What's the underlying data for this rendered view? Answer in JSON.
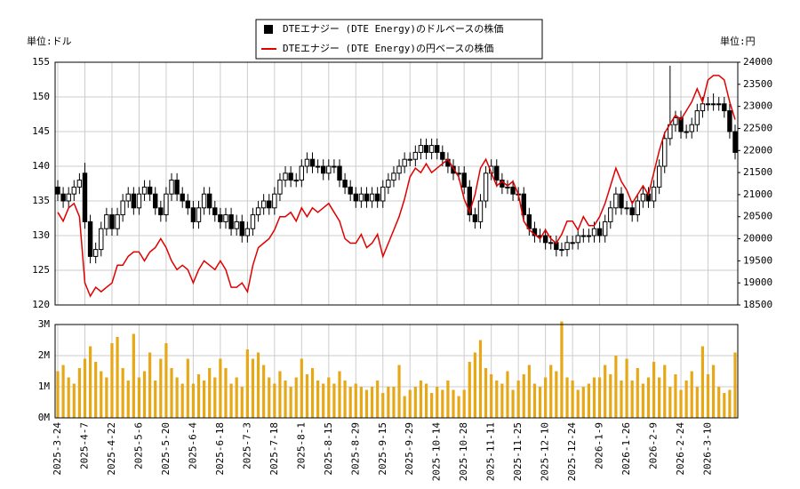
{
  "chart_data": [
    {
      "type": "candlestick",
      "y_label": "単位:ドル",
      "y2_label": "単位:円",
      "categories": [
        "2025-3-24",
        null,
        null,
        null,
        null,
        "2025-4-7",
        null,
        null,
        null,
        null,
        "2025-4-22",
        null,
        null,
        null,
        null,
        "2025-5-6",
        null,
        null,
        null,
        null,
        "2025-5-20",
        null,
        null,
        null,
        null,
        "2025-6-4",
        null,
        null,
        null,
        null,
        "2025-6-18",
        null,
        null,
        null,
        null,
        "2025-7-3",
        null,
        null,
        null,
        null,
        "2025-7-18",
        null,
        null,
        null,
        null,
        "2025-8-1",
        null,
        null,
        null,
        null,
        "2025-8-15",
        null,
        null,
        null,
        null,
        "2025-8-29",
        null,
        null,
        null,
        null,
        "2025-9-15",
        null,
        null,
        null,
        null,
        "2025-9-29",
        null,
        null,
        null,
        null,
        "2025-10-14",
        null,
        null,
        null,
        null,
        "2025-10-28",
        null,
        null,
        null,
        null,
        "2025-11-11",
        null,
        null,
        null,
        null,
        "2025-11-25",
        null,
        null,
        null,
        null,
        "2025-12-10",
        null,
        null,
        null,
        null,
        "2025-12-24",
        null,
        null,
        null,
        null,
        "2026-1-9",
        null,
        null,
        null,
        null,
        "2026-1-26",
        null,
        null,
        null,
        null,
        "2026-2-9",
        null,
        null,
        null,
        null,
        "2026-2-24",
        null,
        null,
        null,
        null,
        "2026-3-10",
        null,
        null,
        null,
        null,
        null
      ],
      "series": [
        {
          "name": "DTEエナジー (DTE Energy)のドルベースの株価",
          "color": "#000000",
          "open": [
            137,
            136,
            135,
            136,
            137,
            139,
            132,
            127,
            128,
            131,
            133,
            131,
            133,
            135,
            136,
            134,
            136,
            137,
            136,
            134,
            133,
            136,
            138,
            136,
            135,
            134,
            132,
            134,
            136,
            134,
            133,
            132,
            133,
            131,
            132,
            130,
            131,
            133,
            134,
            135,
            134,
            136,
            138,
            139,
            138,
            138,
            140,
            141,
            140,
            140,
            139,
            140,
            140,
            138,
            137,
            136,
            135,
            136,
            135,
            136,
            135,
            137,
            138,
            139,
            140,
            141,
            141,
            142,
            143,
            142,
            143,
            142,
            141,
            140,
            139,
            139,
            137,
            133,
            132,
            135,
            139,
            140,
            138,
            137,
            137,
            136,
            136,
            133,
            131,
            130,
            130,
            129,
            129,
            128,
            128,
            129,
            129,
            130,
            130,
            130,
            131,
            130,
            132,
            134,
            136,
            134,
            134,
            133,
            135,
            136,
            135,
            137,
            140,
            144,
            146,
            147,
            145,
            145,
            146,
            148,
            149,
            149,
            149,
            149,
            148,
            145
          ],
          "high": [
            138,
            137,
            137,
            138,
            139,
            140.5,
            133,
            129,
            132,
            134,
            134,
            134,
            136,
            137,
            137,
            137,
            138,
            138,
            137,
            135,
            137,
            139,
            139,
            137,
            136,
            135,
            135,
            137,
            137,
            135,
            134,
            134,
            134,
            133,
            133,
            132,
            134,
            135,
            136,
            136,
            137,
            139,
            140,
            140,
            139,
            141,
            142,
            142,
            141,
            141,
            141,
            141,
            141,
            139,
            138,
            137,
            137,
            137,
            137,
            137,
            138,
            139,
            140,
            141,
            142,
            142,
            143,
            144,
            144,
            144,
            144,
            143,
            142,
            141,
            140,
            140,
            138,
            134,
            136,
            140,
            141,
            141,
            139,
            138,
            138,
            137,
            137,
            134,
            132,
            131,
            131,
            130,
            130,
            129,
            130,
            130,
            131,
            131,
            131,
            132,
            132,
            133,
            135,
            137,
            137,
            135,
            135,
            136,
            137,
            137,
            138,
            141,
            145,
            154.5,
            148,
            148,
            146,
            147,
            149,
            150,
            150,
            150.5,
            150,
            150,
            149,
            146
          ],
          "low": [
            135,
            134,
            134,
            135,
            136,
            131,
            126,
            126,
            127,
            130,
            130,
            130,
            132,
            134,
            133,
            133,
            135,
            135,
            133,
            132,
            132,
            135,
            135,
            134,
            133,
            131,
            131,
            133,
            133,
            132,
            131,
            131,
            130,
            130,
            129,
            129,
            130,
            132,
            133,
            133,
            133,
            135,
            137,
            137,
            137,
            137,
            139,
            139,
            139,
            138,
            138,
            139,
            137,
            136,
            135,
            134,
            134,
            134,
            134,
            134,
            134,
            136,
            137,
            138,
            139,
            140,
            140,
            141,
            141,
            141,
            141,
            140,
            139,
            138,
            138,
            136,
            132,
            131,
            131,
            134,
            138,
            137,
            136,
            136,
            135,
            135,
            132,
            130,
            129,
            129,
            128,
            128,
            127,
            127,
            127,
            128,
            128,
            129,
            129,
            129,
            129,
            129,
            131,
            133,
            133,
            133,
            132,
            132,
            134,
            134,
            134,
            136,
            139,
            143,
            145,
            144,
            144,
            144,
            145,
            147,
            148,
            148,
            148,
            147,
            144,
            141
          ],
          "close": [
            136,
            135,
            136,
            137,
            138,
            132,
            127,
            128,
            131,
            133,
            131,
            133,
            135,
            136,
            134,
            136,
            137,
            136,
            134,
            133,
            136,
            138,
            136,
            135,
            134,
            132,
            134,
            136,
            134,
            133,
            132,
            133,
            131,
            132,
            130,
            131,
            133,
            134,
            135,
            134,
            136,
            138,
            139,
            138,
            138,
            140,
            141,
            140,
            140,
            139,
            140,
            140,
            138,
            137,
            136,
            135,
            136,
            135,
            136,
            135,
            137,
            138,
            139,
            140,
            141,
            141,
            142,
            143,
            142,
            143,
            142,
            141,
            140,
            139,
            139,
            137,
            133,
            132,
            135,
            139,
            140,
            138,
            137,
            137,
            136,
            136,
            133,
            131,
            130,
            130,
            129,
            129,
            128,
            128,
            129,
            129,
            130,
            130,
            130,
            131,
            130,
            132,
            134,
            136,
            134,
            134,
            133,
            135,
            136,
            135,
            137,
            140,
            144,
            146,
            147,
            145,
            145,
            146,
            148,
            149,
            149,
            149,
            149,
            148,
            145,
            142
          ]
        },
        {
          "name": "DTEエナジー (DTE Energy)の円ベースの株価",
          "color": "#e00000",
          "axis": "y2",
          "values": [
            20600,
            20400,
            20700,
            20800,
            20500,
            19000,
            18700,
            18900,
            18800,
            18900,
            19000,
            19400,
            19400,
            19600,
            19700,
            19700,
            19500,
            19700,
            19800,
            20000,
            19800,
            19500,
            19300,
            19400,
            19300,
            19000,
            19300,
            19500,
            19400,
            19300,
            19500,
            19300,
            18900,
            18900,
            19000,
            18800,
            19400,
            19800,
            19900,
            20000,
            20200,
            20500,
            20500,
            20600,
            20400,
            20700,
            20500,
            20700,
            20600,
            20700,
            20800,
            20600,
            20400,
            20000,
            19900,
            19900,
            20100,
            19800,
            19900,
            20100,
            19600,
            19900,
            20200,
            20500,
            20900,
            21400,
            21600,
            21500,
            21700,
            21500,
            21600,
            21700,
            21800,
            21600,
            21400,
            20900,
            20600,
            21000,
            21600,
            21800,
            21500,
            21200,
            21300,
            21200,
            21300,
            21000,
            20400,
            20200,
            20100,
            20000,
            20200,
            20000,
            19900,
            20100,
            20400,
            20400,
            20200,
            20500,
            20300,
            20300,
            20500,
            20800,
            21200,
            21600,
            21300,
            21100,
            20800,
            21000,
            21200,
            21000,
            21500,
            22000,
            22400,
            22600,
            22800,
            22700,
            22900,
            23100,
            23400,
            23100,
            23600,
            23700,
            23700,
            23600,
            23100,
            22700
          ]
        }
      ],
      "ylim": [
        120,
        155
      ],
      "yticks": [
        120,
        125,
        130,
        135,
        140,
        145,
        150,
        155
      ],
      "y2lim": [
        18500,
        24000
      ],
      "y2ticks": [
        18500,
        19000,
        19500,
        20000,
        20500,
        21000,
        21500,
        22000,
        22500,
        23000,
        23500,
        24000
      ],
      "grid": true,
      "legend": "top"
    },
    {
      "type": "bar",
      "color": "#e6a817",
      "values": [
        1500000,
        1700000,
        1300000,
        1100000,
        1600000,
        1900000,
        2300000,
        1800000,
        1500000,
        1300000,
        2400000,
        2600000,
        1600000,
        1200000,
        2700000,
        1300000,
        1500000,
        2100000,
        1200000,
        1900000,
        2400000,
        1600000,
        1300000,
        1100000,
        1900000,
        1100000,
        1400000,
        1200000,
        1600000,
        1300000,
        1900000,
        1600000,
        1100000,
        1300000,
        1000000,
        2200000,
        1900000,
        2100000,
        1700000,
        1300000,
        1100000,
        1500000,
        1200000,
        1000000,
        1300000,
        1900000,
        1400000,
        1600000,
        1200000,
        1100000,
        1300000,
        1100000,
        1500000,
        1200000,
        1000000,
        1100000,
        1000000,
        900000,
        1000000,
        1200000,
        800000,
        1000000,
        1000000,
        1700000,
        700000,
        900000,
        1000000,
        1200000,
        1100000,
        800000,
        1000000,
        900000,
        1200000,
        900000,
        700000,
        900000,
        1800000,
        2100000,
        2500000,
        1600000,
        1400000,
        1200000,
        1100000,
        1500000,
        900000,
        1200000,
        1400000,
        1700000,
        1100000,
        1000000,
        1300000,
        1700000,
        1500000,
        3100000,
        1300000,
        1200000,
        900000,
        1000000,
        1100000,
        1300000,
        1300000,
        1700000,
        1400000,
        2000000,
        1200000,
        1900000,
        1200000,
        1600000,
        1100000,
        1300000,
        1800000,
        1300000,
        1700000,
        1000000,
        1400000,
        900000,
        1200000,
        1500000,
        1000000,
        2300000,
        1400000,
        1700000,
        1000000,
        800000,
        900000,
        2100000
      ],
      "ylim": [
        0,
        3000000
      ],
      "yticks": [
        {
          "value": 0,
          "label": "0M"
        },
        {
          "value": 1000000,
          "label": "1M"
        },
        {
          "value": 2000000,
          "label": "2M"
        },
        {
          "value": 3000000,
          "label": "3M"
        }
      ],
      "grid": true
    }
  ]
}
